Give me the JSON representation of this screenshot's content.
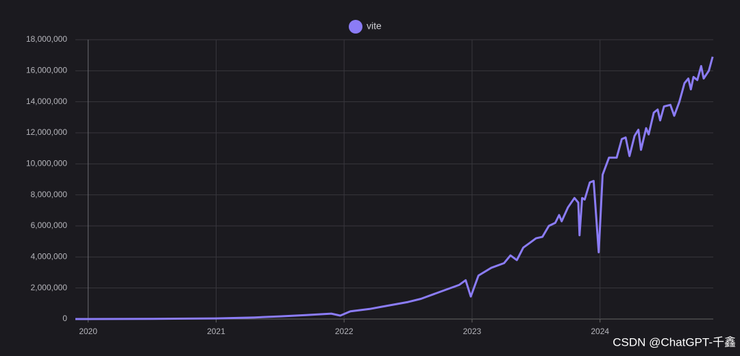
{
  "chart_data": {
    "type": "line",
    "series": [
      {
        "name": "vite",
        "color": "#8b7cf6",
        "x": [
          2019.9,
          2020.5,
          2021.0,
          2021.3,
          2021.5,
          2021.7,
          2021.9,
          2021.97,
          2022.05,
          2022.2,
          2022.3,
          2022.4,
          2022.5,
          2022.6,
          2022.7,
          2022.8,
          2022.9,
          2022.95,
          2022.99,
          2023.05,
          2023.15,
          2023.25,
          2023.3,
          2023.35,
          2023.4,
          2023.45,
          2023.5,
          2023.55,
          2023.6,
          2023.65,
          2023.68,
          2023.7,
          2023.75,
          2023.8,
          2023.83,
          2023.84,
          2023.86,
          2023.88,
          2023.92,
          2023.95,
          2023.99,
          2024.02,
          2024.07,
          2024.13,
          2024.17,
          2024.2,
          2024.23,
          2024.27,
          2024.3,
          2024.32,
          2024.36,
          2024.38,
          2024.42,
          2024.45,
          2024.47,
          2024.5,
          2024.55,
          2024.58,
          2024.62,
          2024.66,
          2024.69,
          2024.71,
          2024.73,
          2024.76,
          2024.79,
          2024.81,
          2024.85,
          2024.88
        ],
        "values": [
          0,
          10000,
          40000,
          100000,
          170000,
          250000,
          350000,
          220000,
          500000,
          650000,
          800000,
          950000,
          1100000,
          1300000,
          1600000,
          1900000,
          2200000,
          2500000,
          1450000,
          2800000,
          3300000,
          3600000,
          4100000,
          3800000,
          4600000,
          4900000,
          5200000,
          5300000,
          6000000,
          6200000,
          6700000,
          6300000,
          7200000,
          7800000,
          7500000,
          5400000,
          7800000,
          7700000,
          8800000,
          8900000,
          4300000,
          9300000,
          10400000,
          10400000,
          11600000,
          11700000,
          10500000,
          11800000,
          12200000,
          10900000,
          12300000,
          11900000,
          13300000,
          13500000,
          12800000,
          13700000,
          13800000,
          13100000,
          14000000,
          15200000,
          15500000,
          14800000,
          15600000,
          15400000,
          16300000,
          15500000,
          16000000,
          16900000
        ]
      }
    ],
    "xlim": [
      2019.9,
      2024.885
    ],
    "xticks": [
      2020,
      2021,
      2022,
      2023,
      2024
    ],
    "ylim": [
      0,
      18000000
    ],
    "yticks": [
      0,
      {
        "value": 2000000,
        "label": "2,000,000"
      },
      {
        "value": 4000000,
        "label": "4,000,000"
      },
      {
        "value": 6000000,
        "label": "6,000,000"
      },
      {
        "value": 8000000,
        "label": "8,000,000"
      },
      {
        "value": 10000000,
        "label": "10,000,000"
      },
      {
        "value": 12000000,
        "label": "12,000,000"
      },
      {
        "value": 14000000,
        "label": "14,000,000"
      },
      {
        "value": 16000000,
        "label": "16,000,000"
      },
      {
        "value": 18000000,
        "label": "18,000,000"
      }
    ],
    "grid": true,
    "legend": "top",
    "watermark": "CSDN @ChatGPT-千鑫"
  }
}
